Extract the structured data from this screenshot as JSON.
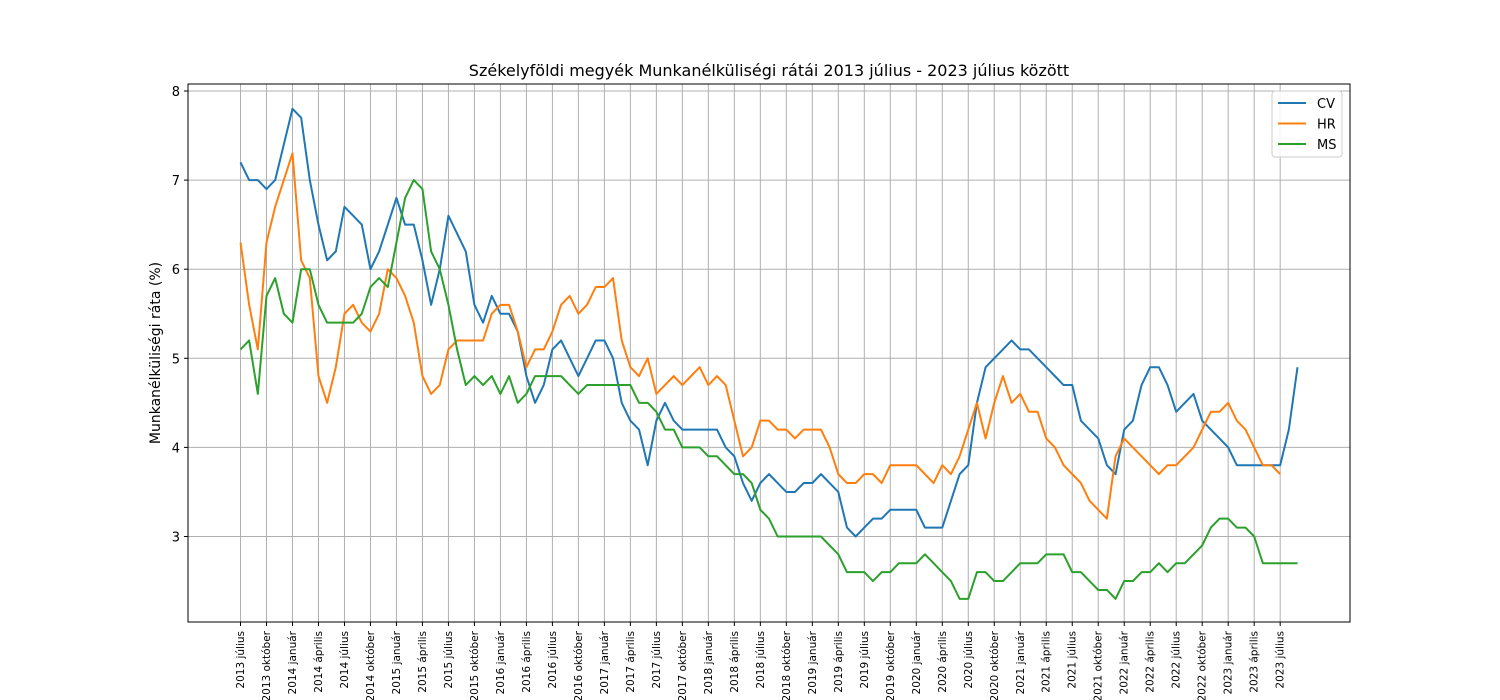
{
  "chart_data": {
    "type": "line",
    "title": "Székelyföldi megyék Munkanélküliségi rátái 2013 július - 2023 július között",
    "xlabel": "",
    "ylabel": "Munkanélküliségi ráta (%)",
    "ylim": [
      2,
      8
    ],
    "y_ticks": [
      3,
      4,
      5,
      6,
      7,
      8
    ],
    "grid": true,
    "legend_position": "top-right",
    "x_tick_labels": [
      "2013 július",
      "2013 október",
      "2014 január",
      "2014 április",
      "2014 július",
      "2014 október",
      "2015 január",
      "2015 április",
      "2015 július",
      "2015 október",
      "2016 január",
      "2016 április",
      "2016 július",
      "2016 október",
      "2017 január",
      "2017 április",
      "2017 július",
      "2017 október",
      "2018 január",
      "2018 április",
      "2018 július",
      "2018 október",
      "2019 január",
      "2019 április",
      "2019 július",
      "2019 október",
      "2020 január",
      "2020 április",
      "2020 július",
      "2020 október",
      "2021 január",
      "2021 április",
      "2021 július",
      "2021 október",
      "2022 január",
      "2022 április",
      "2022 július",
      "2022 október",
      "2023 január",
      "2023 április",
      "2023 július"
    ],
    "series": [
      {
        "name": "CV",
        "color": "#1f77b4",
        "values": [
          7.2,
          7.0,
          7.0,
          6.9,
          7.0,
          7.4,
          7.8,
          7.7,
          7.0,
          6.5,
          6.1,
          6.2,
          6.7,
          6.6,
          6.5,
          6.0,
          6.2,
          6.5,
          6.8,
          6.5,
          6.5,
          6.1,
          5.6,
          6.0,
          6.6,
          6.4,
          6.2,
          5.6,
          5.4,
          5.7,
          5.5,
          5.5,
          5.3,
          4.8,
          4.5,
          4.7,
          5.1,
          5.2,
          5.0,
          4.8,
          5.0,
          5.2,
          5.2,
          5.0,
          4.5,
          4.3,
          4.2,
          3.8,
          4.3,
          4.5,
          4.3,
          4.2,
          4.2,
          4.2,
          4.2,
          4.2,
          4.0,
          3.9,
          3.6,
          3.4,
          3.6,
          3.7,
          3.6,
          3.5,
          3.5,
          3.6,
          3.6,
          3.7,
          3.6,
          3.5,
          3.1,
          3.0,
          3.1,
          3.2,
          3.2,
          3.3,
          3.3,
          3.3,
          3.3,
          3.1,
          3.1,
          3.1,
          3.4,
          3.7,
          3.8,
          4.5,
          4.9,
          5.0,
          5.1,
          5.2,
          5.1,
          5.1,
          5.0,
          4.9,
          4.8,
          4.7,
          4.7,
          4.3,
          4.2,
          4.1,
          3.8,
          3.7,
          4.2,
          4.3,
          4.7,
          4.9,
          4.9,
          4.7,
          4.4,
          4.5,
          4.6,
          4.3,
          4.2,
          4.1,
          4.0,
          3.8,
          3.8,
          3.8,
          3.8,
          3.8,
          3.8,
          4.2,
          4.9
        ]
      },
      {
        "name": "HR",
        "color": "#ff7f0e",
        "values": [
          6.3,
          5.6,
          5.1,
          6.3,
          6.7,
          7.0,
          7.3,
          6.1,
          5.9,
          4.8,
          4.5,
          4.9,
          5.5,
          5.6,
          5.4,
          5.3,
          5.5,
          6.0,
          5.9,
          5.7,
          5.4,
          4.8,
          4.6,
          4.7,
          5.1,
          5.2,
          5.2,
          5.2,
          5.2,
          5.5,
          5.6,
          5.6,
          5.3,
          4.9,
          5.1,
          5.1,
          5.3,
          5.6,
          5.7,
          5.5,
          5.6,
          5.8,
          5.8,
          5.9,
          5.2,
          4.9,
          4.8,
          5.0,
          4.6,
          4.7,
          4.8,
          4.7,
          4.8,
          4.9,
          4.7,
          4.8,
          4.7,
          4.3,
          3.9,
          4.0,
          4.3,
          4.3,
          4.2,
          4.2,
          4.1,
          4.2,
          4.2,
          4.2,
          4.0,
          3.7,
          3.6,
          3.6,
          3.7,
          3.7,
          3.6,
          3.8,
          3.8,
          3.8,
          3.8,
          3.7,
          3.6,
          3.8,
          3.7,
          3.9,
          4.2,
          4.5,
          4.1,
          4.5,
          4.8,
          4.5,
          4.6,
          4.4,
          4.4,
          4.1,
          4.0,
          3.8,
          3.7,
          3.6,
          3.4,
          3.3,
          3.2,
          3.9,
          4.1,
          4.0,
          3.9,
          3.8,
          3.7,
          3.8,
          3.8,
          3.9,
          4.0,
          4.2,
          4.4,
          4.4,
          4.5,
          4.3,
          4.2,
          4.0,
          3.8,
          3.8,
          3.7
        ]
      },
      {
        "name": "MS",
        "color": "#2ca02c",
        "values": [
          5.1,
          5.2,
          4.6,
          5.7,
          5.9,
          5.5,
          5.4,
          6.0,
          6.0,
          5.6,
          5.4,
          5.4,
          5.4,
          5.4,
          5.5,
          5.8,
          5.9,
          5.8,
          6.3,
          6.8,
          7.0,
          6.9,
          6.2,
          6.0,
          5.6,
          5.1,
          4.7,
          4.8,
          4.7,
          4.8,
          4.6,
          4.8,
          4.5,
          4.6,
          4.8,
          4.8,
          4.8,
          4.8,
          4.7,
          4.6,
          4.7,
          4.7,
          4.7,
          4.7,
          4.7,
          4.7,
          4.5,
          4.5,
          4.4,
          4.2,
          4.2,
          4.0,
          4.0,
          4.0,
          3.9,
          3.9,
          3.8,
          3.7,
          3.7,
          3.6,
          3.3,
          3.2,
          3.0,
          3.0,
          3.0,
          3.0,
          3.0,
          3.0,
          2.9,
          2.8,
          2.6,
          2.6,
          2.6,
          2.5,
          2.6,
          2.6,
          2.7,
          2.7,
          2.7,
          2.8,
          2.7,
          2.6,
          2.5,
          2.3,
          2.3,
          2.6,
          2.6,
          2.5,
          2.5,
          2.6,
          2.7,
          2.7,
          2.7,
          2.8,
          2.8,
          2.8,
          2.6,
          2.6,
          2.5,
          2.4,
          2.4,
          2.3,
          2.5,
          2.5,
          2.6,
          2.6,
          2.7,
          2.6,
          2.7,
          2.7,
          2.8,
          2.9,
          3.1,
          3.2,
          3.2,
          3.1,
          3.1,
          3.0,
          2.7,
          2.7,
          2.7,
          2.7,
          2.7
        ]
      }
    ]
  }
}
